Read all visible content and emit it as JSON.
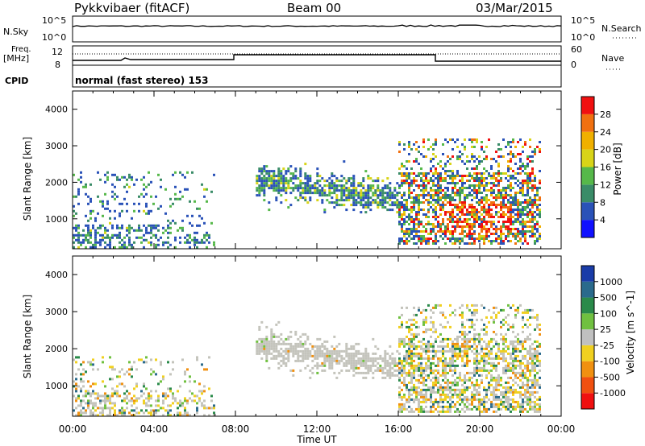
{
  "header": {
    "station": "Pykkvibaer (fitACF)",
    "beam": "Beam 00",
    "date": "03/Mar/2015"
  },
  "top_panel": {
    "left_label": "N.Sky",
    "right_label": "N.Search",
    "left_ticks": [
      "10^5",
      "10^0"
    ],
    "right_ticks": [
      "10^5",
      "10^0"
    ]
  },
  "freq_panel": {
    "left_label_line1": "Freq.",
    "left_label_line2": "[MHz]",
    "left_ticks": [
      "12",
      "8"
    ],
    "right_ticks": [
      "60",
      "0"
    ],
    "right_label": "Nave"
  },
  "cpid": {
    "label": "CPID",
    "text": "normal (fast stereo) 153"
  },
  "time_axis": {
    "label": "Time UT",
    "ticks": [
      "00:00",
      "04:00",
      "08:00",
      "12:00",
      "16:00",
      "20:00",
      "00:00"
    ]
  },
  "power_colorbar": {
    "label": "Power [dB]",
    "ticks": [
      "4",
      "8",
      "12",
      "16",
      "20",
      "24",
      "28"
    ],
    "colors": [
      "#1010ff",
      "#2a52b8",
      "#3a8c68",
      "#56b84a",
      "#d8d418",
      "#f0b000",
      "#f07010",
      "#f01010"
    ]
  },
  "velocity_colorbar": {
    "label": "Velocity [m s^-1]",
    "ticks": [
      "1000",
      "500",
      "100",
      "25",
      "-25",
      "-100",
      "-500",
      "-1000"
    ],
    "colors": [
      "#1a3ca8",
      "#2a6a8c",
      "#2a8a4a",
      "#70c040",
      "#c0c0c0",
      "#f0d020",
      "#f09010",
      "#f05010",
      "#f01010"
    ]
  },
  "colors": {
    "grey": "#c4c4bc",
    "blue": "#2a48b8"
  },
  "chart_data": [
    {
      "type": "heatmap",
      "title": "Power",
      "xlabel": "Time UT",
      "ylabel": "Slant Range [km]",
      "xlim": [
        "00:00",
        "24:00"
      ],
      "ylim": [
        180,
        4500
      ],
      "y_ticks": [
        1000,
        2000,
        3000,
        4000
      ],
      "colorbar": {
        "label": "Power [dB]",
        "range": [
          0,
          30
        ]
      },
      "features": [
        {
          "time": [
            "00:00",
            "07:00"
          ],
          "range_km": [
            200,
            2300
          ],
          "power_db": [
            4,
            16
          ]
        },
        {
          "time": [
            "09:00",
            "16:00"
          ],
          "range_km": [
            1200,
            3000
          ],
          "power_db": [
            4,
            18
          ]
        },
        {
          "time": [
            "16:00",
            "23:30"
          ],
          "range_km": [
            300,
            3200
          ],
          "power_db": [
            4,
            30
          ]
        }
      ]
    },
    {
      "type": "heatmap",
      "title": "Velocity",
      "xlabel": "Time UT",
      "ylabel": "Slant Range [km]",
      "xlim": [
        "00:00",
        "24:00"
      ],
      "ylim": [
        180,
        4500
      ],
      "y_ticks": [
        1000,
        2000,
        3000,
        4000
      ],
      "colorbar": {
        "label": "Velocity [m s^-1]",
        "range": [
          -1000,
          1000
        ]
      },
      "features": [
        {
          "time": [
            "00:00",
            "07:00"
          ],
          "range_km": [
            200,
            1800
          ],
          "velocity": [
            -500,
            500
          ]
        },
        {
          "time": [
            "09:00",
            "16:00"
          ],
          "range_km": [
            1200,
            3200
          ],
          "velocity": [
            -25,
            25
          ]
        },
        {
          "time": [
            "16:00",
            "23:30"
          ],
          "range_km": [
            300,
            3200
          ],
          "velocity": [
            -500,
            500
          ]
        }
      ]
    }
  ]
}
